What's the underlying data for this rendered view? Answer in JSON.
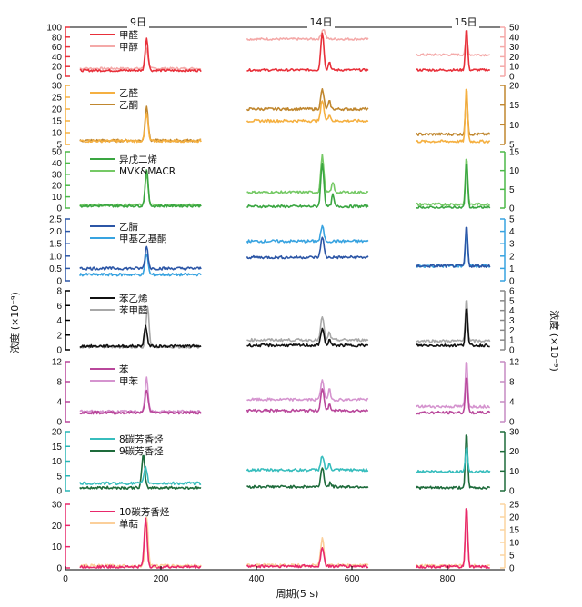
{
  "chart_data": {
    "type": "line",
    "days": [
      {
        "label": "9日",
        "x_range": [
          30,
          285
        ]
      },
      {
        "label": "14日",
        "x_range": [
          380,
          635
        ]
      },
      {
        "label": "15日",
        "x_range": [
          735,
          890
        ]
      }
    ],
    "x_axis": {
      "label": "周期(5 s)",
      "range": [
        0,
        920
      ],
      "ticks": [
        0,
        200,
        400,
        600,
        800
      ]
    },
    "y_axis_label_left": "浓度 (×10⁻⁹)",
    "y_axis_label_right": "浓度 (×10⁻⁹)",
    "panels": [
      {
        "id": "p1",
        "left_color": "#e8303a",
        "right_color": "#f4a9a8",
        "left_ylim": [
          0,
          100
        ],
        "left_ticks": [
          "0",
          "20",
          "40",
          "60",
          "80",
          "100"
        ],
        "right_ylim": [
          0,
          50
        ],
        "right_ticks": [
          "0",
          "10",
          "20",
          "30",
          "40",
          "50"
        ],
        "series": [
          {
            "name": "甲醛",
            "color": "#e8303a",
            "axis": "left",
            "base": [
              12,
              13,
              13
            ],
            "peaks": [
              [
                170,
                78,
                4
              ],
              [
                538,
                90,
                4
              ],
              [
                553,
                30,
                3
              ],
              [
                840,
                100,
                3
              ]
            ]
          },
          {
            "name": "甲醇",
            "color": "#f4a9a8",
            "axis": "right",
            "base": [
              8,
              38,
              22
            ],
            "peaks": [
              [
                170,
                28,
                4
              ],
              [
                540,
                48,
                5
              ],
              [
                840,
                40,
                3
              ]
            ]
          }
        ]
      },
      {
        "id": "p2",
        "left_color": "#f5b041",
        "right_color": "#c0872f",
        "left_ylim": [
          5,
          30
        ],
        "left_ticks": [
          "5",
          "10",
          "15",
          "20",
          "25",
          "30"
        ],
        "right_ylim": [
          5,
          20
        ],
        "right_ticks": [
          "5",
          "10",
          "15",
          "20"
        ],
        "series": [
          {
            "name": "乙醛",
            "color": "#f5b041",
            "axis": "left",
            "base": [
              6.5,
              15,
              6.3
            ],
            "peaks": [
              [
                170,
                18,
                4
              ],
              [
                538,
                24,
                4
              ],
              [
                553,
                18,
                3
              ],
              [
                840,
                30,
                3
              ]
            ]
          },
          {
            "name": "乙酮",
            "color": "#c0872f",
            "axis": "right",
            "base": [
              6,
              14,
              7.6
            ],
            "peaks": [
              [
                170,
                15,
                4
              ],
              [
                538,
                19,
                4
              ],
              [
                553,
                16,
                3
              ],
              [
                840,
                18,
                3
              ]
            ]
          }
        ]
      },
      {
        "id": "p3",
        "left_color": "#4cb848",
        "right_color": "#4cb848",
        "left_ylim": [
          0,
          50
        ],
        "left_ticks": [
          "0",
          "10",
          "20",
          "30",
          "40",
          "50"
        ],
        "right_ylim": [
          0,
          15
        ],
        "right_ticks": [
          "0",
          "5",
          "10",
          "15"
        ],
        "series": [
          {
            "name": "异戊二烯",
            "color": "#3aa641",
            "axis": "left",
            "base": [
              2,
              1.5,
              0.5
            ],
            "peaks": [
              [
                170,
                35,
                4
              ],
              [
                538,
                40,
                4
              ],
              [
                560,
                12,
                3
              ],
              [
                840,
                42,
                3
              ]
            ]
          },
          {
            "name": "MVK&MACR",
            "color": "#75c965",
            "axis": "right",
            "base": [
              0.8,
              4.2,
              1
            ],
            "peaks": [
              [
                170,
                9,
                4
              ],
              [
                538,
                14,
                4
              ],
              [
                560,
                7,
                3
              ],
              [
                840,
                14,
                3
              ]
            ]
          }
        ]
      },
      {
        "id": "p4",
        "left_color": "#2c56a6",
        "right_color": "#38a3e0",
        "left_ylim": [
          0,
          2.5
        ],
        "left_ticks": [
          "0",
          "0.5",
          "1.0",
          "1.5",
          "2.0",
          "2.5"
        ],
        "right_ylim": [
          0,
          5
        ],
        "right_ticks": [
          "0",
          "1",
          "2",
          "3",
          "4",
          "5"
        ],
        "series": [
          {
            "name": "乙腈",
            "color": "#2c56a6",
            "axis": "left",
            "base": [
              0.5,
              0.95,
              0.6
            ],
            "peaks": [
              [
                170,
                1.4,
                4
              ],
              [
                538,
                1.8,
                4
              ],
              [
                840,
                2.3,
                3
              ]
            ]
          },
          {
            "name": "甲基乙基酮",
            "color": "#38a3e0",
            "axis": "right",
            "base": [
              0.5,
              3.2,
              1.2
            ],
            "peaks": [
              [
                170,
                2.2,
                4
              ],
              [
                538,
                4.4,
                4
              ],
              [
                840,
                4.0,
                3
              ]
            ]
          }
        ]
      },
      {
        "id": "p5",
        "left_color": "#000000",
        "right_color": "#888888",
        "left_ylim": [
          0,
          8
        ],
        "left_ticks": [
          "0",
          "2",
          "4",
          "6",
          "8"
        ],
        "right_ylim": [
          0,
          6
        ],
        "right_ticks": [
          "0",
          "1",
          "2",
          "3",
          "4",
          "5",
          "6"
        ],
        "series": [
          {
            "name": "苯乙烯",
            "color": "#111111",
            "axis": "left",
            "base": [
              0.5,
              0.6,
              0.6
            ],
            "peaks": [
              [
                168,
                3.2,
                4
              ],
              [
                538,
                3.0,
                4
              ],
              [
                553,
                1.4,
                3
              ],
              [
                840,
                6.0,
                3
              ]
            ]
          },
          {
            "name": "苯甲醛",
            "color": "#a8a8a8",
            "axis": "right",
            "base": [
              0.3,
              1.0,
              0.9
            ],
            "peaks": [
              [
                172,
                4.4,
                4
              ],
              [
                538,
                3.4,
                4
              ],
              [
                553,
                1.8,
                3
              ],
              [
                840,
                5.5,
                3
              ]
            ]
          }
        ]
      },
      {
        "id": "p6",
        "left_color": "#b9479b",
        "right_color": "#c68bc2",
        "left_ylim": [
          0,
          12
        ],
        "left_ticks": [
          "0",
          "4",
          "8",
          "12"
        ],
        "right_ylim": [
          0,
          12
        ],
        "right_ticks": [
          "0",
          "4",
          "8",
          "12"
        ],
        "series": [
          {
            "name": "苯",
            "color": "#b9479b",
            "axis": "left",
            "base": [
              1.8,
              2.2,
              1.8
            ],
            "peaks": [
              [
                170,
                6.5,
                4
              ],
              [
                538,
                6.8,
                4
              ],
              [
                553,
                3.5,
                3
              ],
              [
                840,
                9.5,
                3
              ]
            ]
          },
          {
            "name": "甲苯",
            "color": "#d594cf",
            "axis": "right",
            "base": [
              2.0,
              4.4,
              3.0
            ],
            "peaks": [
              [
                170,
                9.0,
                4
              ],
              [
                538,
                8.5,
                4
              ],
              [
                553,
                6.5,
                3
              ],
              [
                840,
                12.5,
                3
              ]
            ]
          }
        ]
      },
      {
        "id": "p7",
        "left_color": "#29b5b5",
        "right_color": "#1e6b3b",
        "left_ylim": [
          0,
          20
        ],
        "left_ticks": [
          "0",
          "5",
          "10",
          "15",
          "20"
        ],
        "right_ylim": [
          0,
          30
        ],
        "right_ticks": [
          "0",
          "10",
          "20",
          "30"
        ],
        "series": [
          {
            "name": "8碳芳香烃",
            "color": "#37bdbd",
            "axis": "left",
            "base": [
              2.5,
              7,
              6.5
            ],
            "peaks": [
              [
                168,
                8,
                4
              ],
              [
                538,
                12,
                4
              ],
              [
                553,
                9,
                3
              ],
              [
                840,
                15,
                3
              ]
            ]
          },
          {
            "name": "9碳芳香烃",
            "color": "#1e6b3b",
            "axis": "right",
            "base": [
              1.5,
              2,
              1.5
            ],
            "peaks": [
              [
                163,
                18,
                4
              ],
              [
                538,
                12,
                4
              ],
              [
                555,
                4,
                3
              ],
              [
                840,
                30,
                3
              ]
            ]
          }
        ]
      },
      {
        "id": "p8",
        "left_color": "#e8286b",
        "right_color": "#fbd4a1",
        "left_ylim": [
          0,
          30
        ],
        "left_ticks": [
          "0",
          "10",
          "20",
          "30"
        ],
        "right_ylim": [
          0,
          25
        ],
        "right_ticks": [
          "0",
          "5",
          "10",
          "15",
          "20",
          "25"
        ],
        "series": [
          {
            "name": "10碳芳香烃",
            "color": "#e8286b",
            "axis": "left",
            "base": [
              0.5,
              0.8,
              0.5
            ],
            "peaks": [
              [
                168,
                23,
                4
              ],
              [
                538,
                10,
                4
              ],
              [
                840,
                30,
                3
              ]
            ]
          },
          {
            "name": "单萜",
            "color": "#fbcf9a",
            "axis": "right",
            "base": [
              0.8,
              1.0,
              0.8
            ],
            "peaks": [
              [
                170,
                20,
                4
              ],
              [
                538,
                12,
                4
              ],
              [
                840,
                25,
                3
              ]
            ]
          }
        ]
      }
    ]
  }
}
